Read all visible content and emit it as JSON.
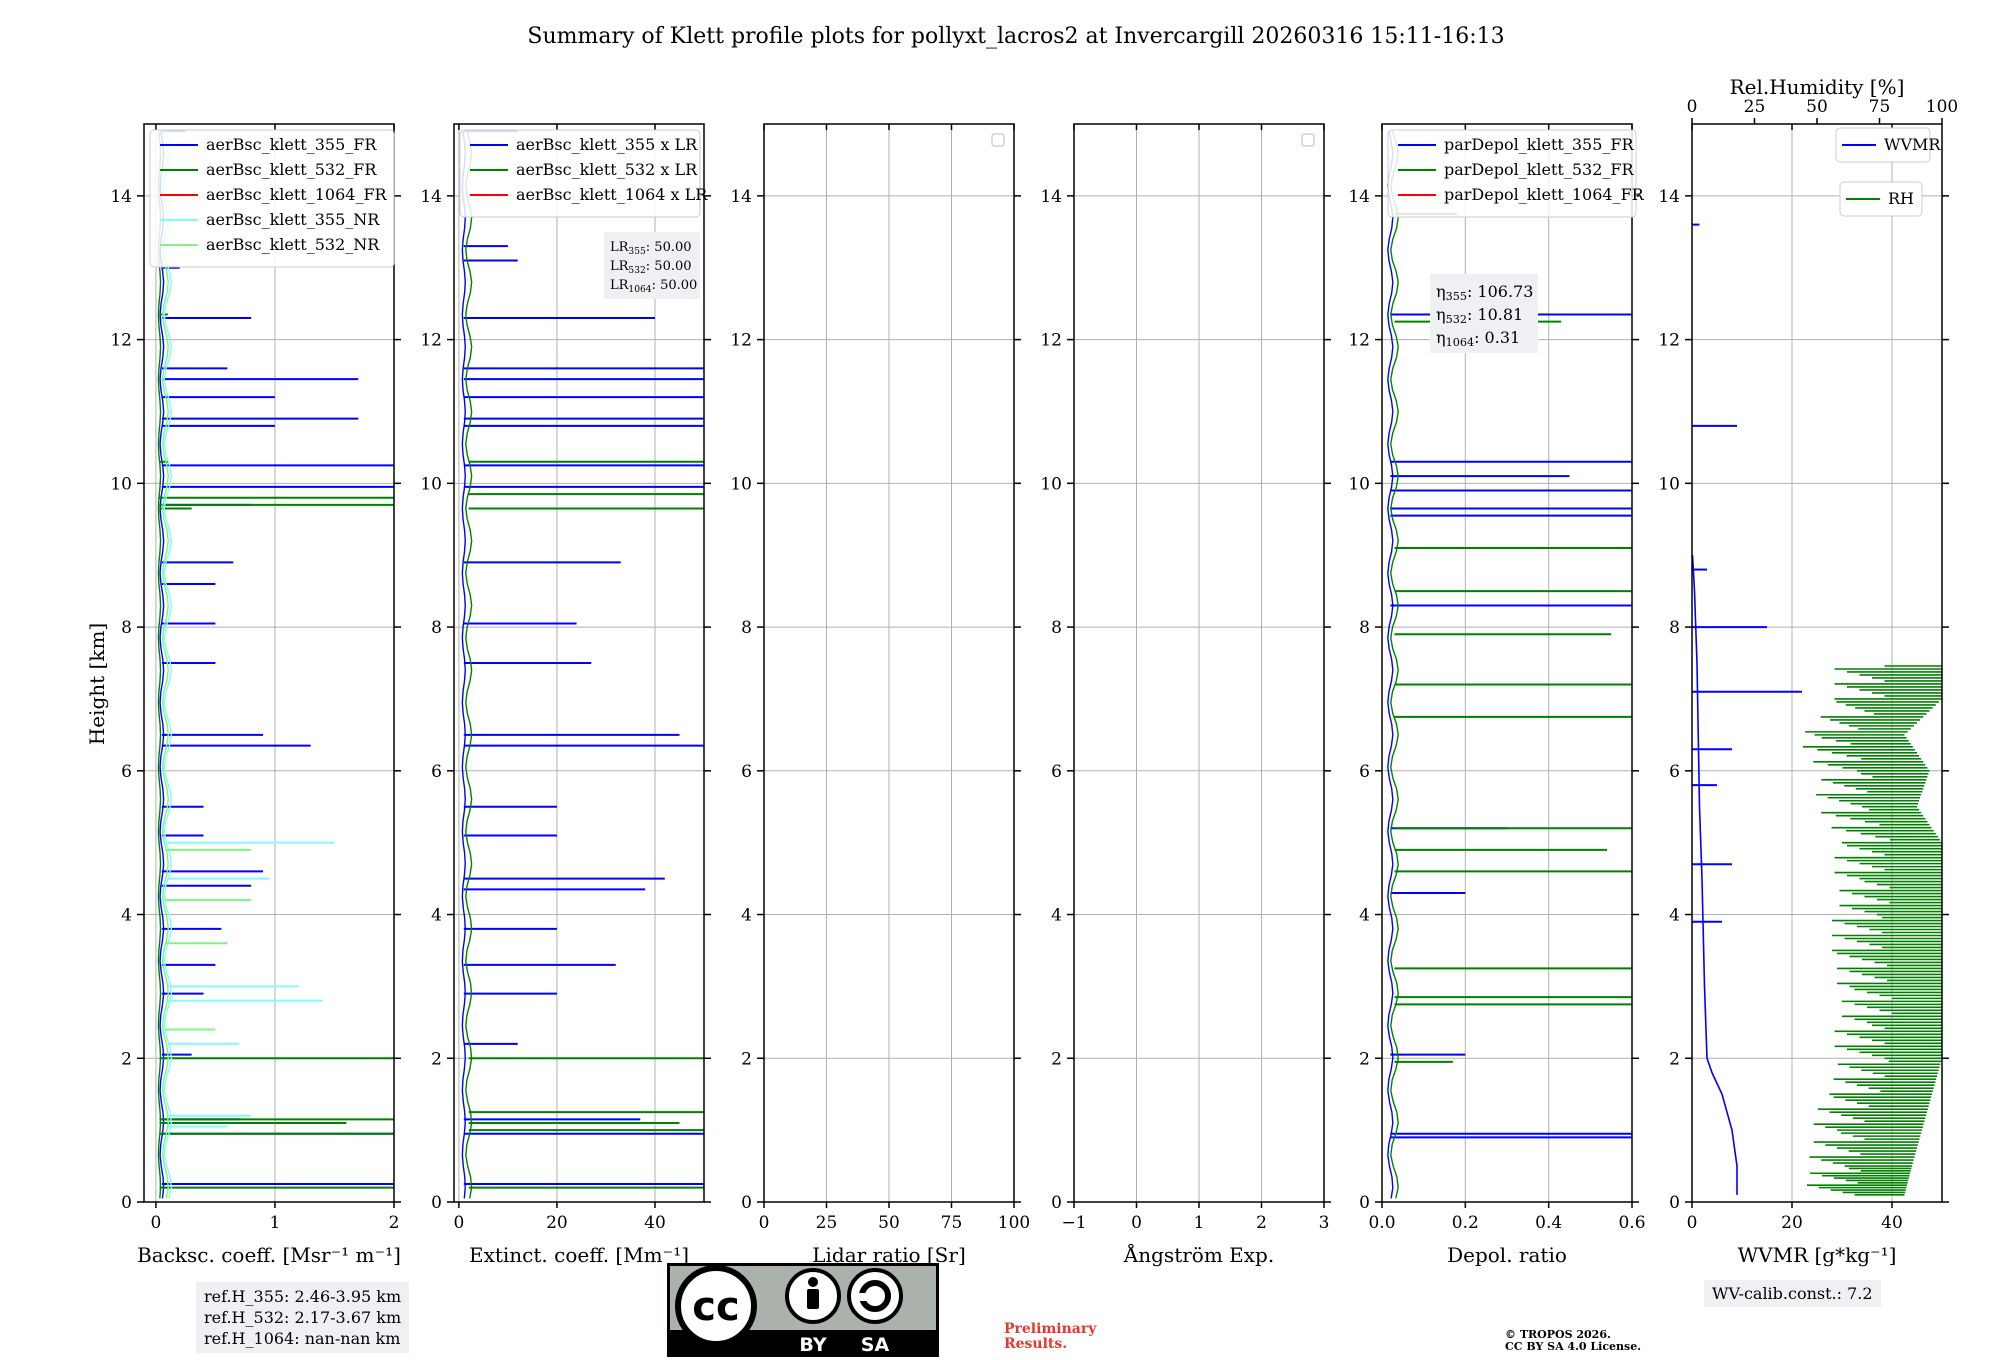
{
  "title": "Summary of Klett profile plots for pollyxt_lacros2 at Invercargill 20260316 15:11-16:13",
  "y_label": "Height [km]",
  "y_ticks": [
    "0",
    "2",
    "4",
    "6",
    "8",
    "10",
    "12",
    "14"
  ],
  "colors": {
    "c355": "#0000ff",
    "c532": "#008000",
    "c1064": "#ff0000",
    "c355nr": "#7ffcff",
    "c532nr": "#7ff57f"
  },
  "panels": [
    {
      "id": "bsc",
      "xlabel": "Backsc. coeff. [Msr⁻¹ m⁻¹]",
      "xticks": [
        "0",
        "1",
        "2"
      ],
      "legend": [
        "aerBsc_klett_355_FR",
        "aerBsc_klett_532_FR",
        "aerBsc_klett_1064_FR",
        "aerBsc_klett_355_NR",
        "aerBsc_klett_532_NR"
      ]
    },
    {
      "id": "ext",
      "xlabel": "Extinct. coeff. [Mm⁻¹]",
      "xticks": [
        "0",
        "20",
        "40"
      ],
      "legend": [
        "aerBsc_klett_355 x LR",
        "aerBsc_klett_532 x LR",
        "aerBsc_klett_1064 x LR"
      ],
      "lr_lines": [
        "LR355: 50.00",
        "LR532: 50.00",
        "LR1064: 50.00"
      ]
    },
    {
      "id": "lr",
      "xlabel": "Lidar ratio [Sr]",
      "xticks": [
        "0",
        "25",
        "50",
        "75",
        "100"
      ]
    },
    {
      "id": "ang",
      "xlabel": "Ångström Exp.",
      "xticks": [
        "−1",
        "0",
        "1",
        "2",
        "3"
      ]
    },
    {
      "id": "dep",
      "xlabel": "Depol. ratio",
      "xticks": [
        "0.0",
        "0.2",
        "0.4",
        "0.6"
      ],
      "legend": [
        "parDepol_klett_355_FR",
        "parDepol_klett_532_FR",
        "parDepol_klett_1064_FR"
      ],
      "eta_lines": [
        "η355: 106.73",
        "η532: 10.81",
        "η1064: 0.31"
      ]
    },
    {
      "id": "wv",
      "xlabel": "WVMR [g*kg⁻¹]",
      "xticks": [
        "0",
        "20",
        "40"
      ],
      "top_label": "Rel.Humidity [%]",
      "top_ticks": [
        "0",
        "25",
        "50",
        "75",
        "100"
      ],
      "legend": [
        "WVMR",
        "RH"
      ]
    }
  ],
  "ref_heights": [
    "ref.H_355: 2.46-3.95 km",
    "ref.H_532: 2.17-3.67 km",
    "ref.H_1064: nan-nan km"
  ],
  "wv_calib": "WV-calib.const.: 7.2",
  "preliminary": [
    "Preliminary",
    "Results."
  ],
  "copyright": [
    "© TROPOS 2026.",
    "CC BY SA 4.0 License."
  ],
  "cc_badge": {
    "by": "BY",
    "sa": "SA"
  },
  "chart_data": [
    {
      "type": "line",
      "title": "",
      "xlabel": "Backsc. coeff. [Msr-1 m-1]",
      "ylabel": "Height [km]",
      "xlim": [
        -0.1,
        2
      ],
      "ylim": [
        0,
        15
      ],
      "series": [
        {
          "name": "aerBsc_klett_355_FR",
          "spikes": [
            [
              14.9,
              0.25
            ],
            [
              13.0,
              0.2
            ],
            [
              12.3,
              0.8
            ],
            [
              11.6,
              0.6
            ],
            [
              11.45,
              1.7
            ],
            [
              11.2,
              1.0
            ],
            [
              10.9,
              1.7
            ],
            [
              10.8,
              1.0
            ],
            [
              10.25,
              2.0
            ],
            [
              9.95,
              2.0
            ],
            [
              9.7,
              0.8
            ],
            [
              8.9,
              0.65
            ],
            [
              8.6,
              0.5
            ],
            [
              8.05,
              0.5
            ],
            [
              7.5,
              0.5
            ],
            [
              6.35,
              1.3
            ],
            [
              6.5,
              0.9
            ],
            [
              5.5,
              0.4
            ],
            [
              5.1,
              0.4
            ],
            [
              4.6,
              0.9
            ],
            [
              4.4,
              0.8
            ],
            [
              3.8,
              0.55
            ],
            [
              3.3,
              0.5
            ],
            [
              2.9,
              0.4
            ],
            [
              2.05,
              0.3
            ],
            [
              1.15,
              0.7
            ],
            [
              0.95,
              2.0
            ],
            [
              0.25,
              2.0
            ]
          ],
          "baseline": 0.05
        },
        {
          "name": "aerBsc_klett_532_FR",
          "spikes": [
            [
              12.35,
              0.1
            ],
            [
              10.3,
              0.1
            ],
            [
              9.8,
              2.0
            ],
            [
              9.7,
              2.0
            ],
            [
              9.65,
              0.3
            ],
            [
              2.0,
              2.0
            ],
            [
              1.15,
              2.0
            ],
            [
              1.1,
              1.6
            ],
            [
              0.95,
              2.0
            ],
            [
              0.2,
              2.0
            ]
          ],
          "baseline": 0.03
        },
        {
          "name": "aerBsc_klett_1064_FR",
          "values": []
        },
        {
          "name": "aerBsc_klett_355_NR",
          "spikes": [
            [
              5.0,
              1.5
            ],
            [
              4.5,
              0.95
            ],
            [
              3.0,
              1.2
            ],
            [
              2.8,
              1.4
            ],
            [
              2.2,
              0.7
            ],
            [
              1.2,
              0.8
            ],
            [
              1.05,
              0.6
            ]
          ],
          "baseline": 0.1
        },
        {
          "name": "aerBsc_klett_532_NR",
          "spikes": [
            [
              4.9,
              0.8
            ],
            [
              4.2,
              0.8
            ],
            [
              3.6,
              0.6
            ],
            [
              2.4,
              0.5
            ]
          ],
          "baseline": 0.08
        }
      ]
    },
    {
      "type": "line",
      "xlabel": "Extinct. coeff. [Mm-1]",
      "xlim": [
        -1,
        50
      ],
      "ylim": [
        0,
        15
      ],
      "series": [
        {
          "name": "aerBsc_klett_355 x LR",
          "spikes": [
            [
              14.9,
              12
            ],
            [
              13.3,
              10
            ],
            [
              13.1,
              12
            ],
            [
              12.3,
              40
            ],
            [
              11.6,
              50
            ],
            [
              11.45,
              50
            ],
            [
              11.2,
              50
            ],
            [
              10.9,
              50
            ],
            [
              10.8,
              50
            ],
            [
              10.25,
              50
            ],
            [
              9.95,
              50
            ],
            [
              8.9,
              33
            ],
            [
              8.05,
              24
            ],
            [
              7.5,
              27
            ],
            [
              6.35,
              50
            ],
            [
              6.5,
              45
            ],
            [
              5.5,
              20
            ],
            [
              5.1,
              20
            ],
            [
              4.5,
              42
            ],
            [
              4.35,
              38
            ],
            [
              3.8,
              20
            ],
            [
              3.3,
              32
            ],
            [
              2.9,
              20
            ],
            [
              2.2,
              12
            ],
            [
              1.15,
              37
            ],
            [
              0.95,
              50
            ],
            [
              0.25,
              50
            ]
          ],
          "baseline": 1
        },
        {
          "name": "aerBsc_klett_532 x LR",
          "spikes": [
            [
              10.3,
              50
            ],
            [
              9.85,
              50
            ],
            [
              9.65,
              50
            ],
            [
              2.0,
              50
            ],
            [
              1.25,
              50
            ],
            [
              1.1,
              45
            ],
            [
              1.0,
              50
            ],
            [
              0.2,
              50
            ]
          ],
          "baseline": 2
        },
        {
          "name": "aerBsc_klett_1064 x LR",
          "values": []
        }
      ],
      "annotations": [
        "LR355: 50.00",
        "LR532: 50.00",
        "LR1064: 50.00"
      ]
    },
    {
      "type": "line",
      "xlabel": "Lidar ratio [Sr]",
      "xlim": [
        0,
        100
      ],
      "ylim": [
        0,
        15
      ],
      "series": []
    },
    {
      "type": "line",
      "xlabel": "Ångström Exp.",
      "xlim": [
        -1,
        3
      ],
      "ylim": [
        0,
        15
      ],
      "series": []
    },
    {
      "type": "line",
      "xlabel": "Depol. ratio",
      "xlim": [
        0,
        0.6
      ],
      "ylim": [
        0,
        15
      ],
      "series": [
        {
          "name": "parDepol_klett_355_FR",
          "spikes": [
            [
              12.35,
              0.6
            ],
            [
              10.3,
              0.6
            ],
            [
              10.1,
              0.45
            ],
            [
              9.9,
              0.6
            ],
            [
              9.65,
              0.6
            ],
            [
              9.55,
              0.6
            ],
            [
              8.3,
              0.6
            ],
            [
              5.2,
              0.3
            ],
            [
              4.3,
              0.2
            ],
            [
              2.05,
              0.2
            ],
            [
              0.95,
              0.6
            ],
            [
              0.9,
              0.6
            ]
          ],
          "baseline": 0.02
        },
        {
          "name": "parDepol_klett_532_FR",
          "spikes": [
            [
              13.75,
              0.18
            ],
            [
              12.25,
              0.43
            ],
            [
              9.1,
              0.6
            ],
            [
              8.5,
              0.6
            ],
            [
              7.9,
              0.55
            ],
            [
              7.2,
              0.6
            ],
            [
              6.75,
              0.6
            ],
            [
              5.2,
              0.6
            ],
            [
              4.9,
              0.54
            ],
            [
              4.6,
              0.6
            ],
            [
              3.25,
              0.6
            ],
            [
              2.85,
              0.6
            ],
            [
              2.75,
              0.6
            ],
            [
              1.95,
              0.17
            ]
          ],
          "baseline": 0.03
        },
        {
          "name": "parDepol_klett_1064_FR",
          "values": []
        }
      ],
      "annotations": [
        "η355: 106.73",
        "η532: 10.81",
        "η1064: 0.31"
      ]
    },
    {
      "type": "line",
      "xlabel": "WVMR [g*kg-1]",
      "xlim": [
        0,
        50
      ],
      "ylim": [
        0,
        15
      ],
      "top_axis": {
        "label": "Rel.Humidity [%]",
        "lim": [
          0,
          100
        ]
      },
      "series": [
        {
          "name": "WVMR",
          "points": [
            [
              0.1,
              9
            ],
            [
              0.5,
              8.5
            ],
            [
              1,
              7.5
            ],
            [
              1.5,
              5.5
            ],
            [
              2,
              4.5
            ],
            [
              2.5,
              3
            ],
            [
              3,
              2
            ],
            [
              4,
              1.8
            ],
            [
              6,
              1.5
            ],
            [
              8,
              1.0
            ],
            [
              9,
              0.5
            ],
            [
              9,
              0.1
            ]
          ],
          "spikes": [
            [
              13.6,
              1.5
            ],
            [
              10.8,
              9
            ],
            [
              8.8,
              3
            ],
            [
              8.0,
              15
            ],
            [
              7.1,
              22
            ],
            [
              6.3,
              8
            ],
            [
              5.8,
              5
            ],
            [
              4.7,
              8
            ],
            [
              3.9,
              6
            ]
          ]
        },
        {
          "name": "RH",
          "range_by_height": [
            [
              0.1,
              85
            ],
            [
              0.5,
              88
            ],
            [
              1,
              92
            ],
            [
              1.5,
              96
            ],
            [
              2,
              100
            ],
            [
              2.5,
              100
            ],
            [
              3,
              100
            ],
            [
              3.5,
              100
            ],
            [
              4,
              100
            ],
            [
              4.5,
              100
            ],
            [
              5,
              100
            ],
            [
              5.5,
              90
            ],
            [
              6,
              95
            ],
            [
              6.5,
              85
            ],
            [
              7,
              100
            ],
            [
              7.5,
              100
            ]
          ]
        }
      ]
    }
  ]
}
